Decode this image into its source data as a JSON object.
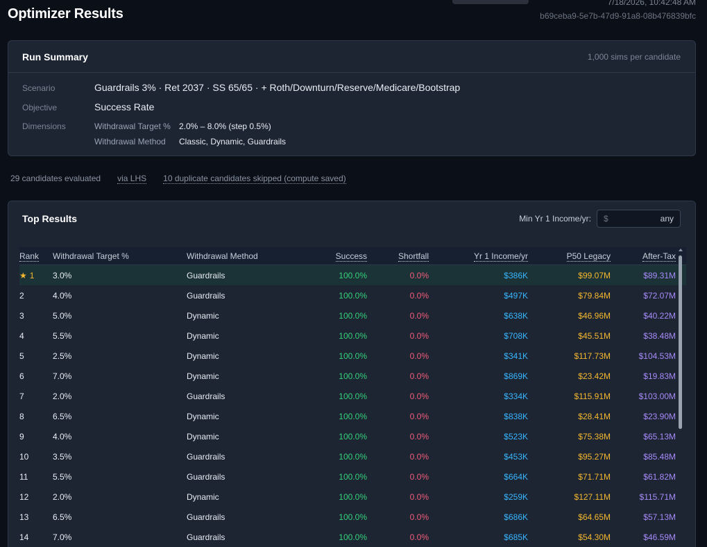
{
  "header": {
    "title": "Optimizer Results",
    "timestamp": "7/18/2026, 10:42:48 AM",
    "run_id": "b69ceba9-5e7b-47d9-91a8-08b476839bfc"
  },
  "summary": {
    "title": "Run Summary",
    "sims": "1,000 sims per candidate",
    "scenario_label": "Scenario",
    "scenario_value": "Guardrails 3% · Ret 2037 · SS 65/65 · + Roth/Downturn/Reserve/Medicare/Bootstrap",
    "objective_label": "Objective",
    "objective_value": "Success Rate",
    "dimensions_label": "Dimensions",
    "dimensions": [
      {
        "name": "Withdrawal Target %",
        "value": "2.0% – 8.0% (step 0.5%)"
      },
      {
        "name": "Withdrawal Method",
        "value": "Classic, Dynamic, Guardrails"
      }
    ]
  },
  "stats": {
    "evaluated": "29 candidates evaluated",
    "method": "via LHS",
    "skipped": "10 duplicate candidates skipped (compute saved)"
  },
  "results": {
    "title": "Top Results",
    "filter_label": "Min Yr 1 Income/yr:",
    "filter_prefix": "$",
    "filter_placeholder": "any",
    "columns": {
      "rank": "Rank",
      "target": "Withdrawal Target %",
      "method": "Withdrawal Method",
      "success": "Success",
      "shortfall": "Shortfall",
      "income": "Yr 1 Income/yr",
      "legacy": "P50 Legacy",
      "after_tax": "After-Tax"
    },
    "rows": [
      {
        "rank": "1",
        "target": "3.0%",
        "method": "Guardrails",
        "success": "100.0%",
        "shortfall": "0.0%",
        "income": "$386K",
        "legacy": "$99.07M",
        "after_tax": "$89.31M"
      },
      {
        "rank": "2",
        "target": "4.0%",
        "method": "Guardrails",
        "success": "100.0%",
        "shortfall": "0.0%",
        "income": "$497K",
        "legacy": "$79.84M",
        "after_tax": "$72.07M"
      },
      {
        "rank": "3",
        "target": "5.0%",
        "method": "Dynamic",
        "success": "100.0%",
        "shortfall": "0.0%",
        "income": "$638K",
        "legacy": "$46.96M",
        "after_tax": "$40.22M"
      },
      {
        "rank": "4",
        "target": "5.5%",
        "method": "Dynamic",
        "success": "100.0%",
        "shortfall": "0.0%",
        "income": "$708K",
        "legacy": "$45.51M",
        "after_tax": "$38.48M"
      },
      {
        "rank": "5",
        "target": "2.5%",
        "method": "Dynamic",
        "success": "100.0%",
        "shortfall": "0.0%",
        "income": "$341K",
        "legacy": "$117.73M",
        "after_tax": "$104.53M"
      },
      {
        "rank": "6",
        "target": "7.0%",
        "method": "Dynamic",
        "success": "100.0%",
        "shortfall": "0.0%",
        "income": "$869K",
        "legacy": "$23.42M",
        "after_tax": "$19.83M"
      },
      {
        "rank": "7",
        "target": "2.0%",
        "method": "Guardrails",
        "success": "100.0%",
        "shortfall": "0.0%",
        "income": "$334K",
        "legacy": "$115.91M",
        "after_tax": "$103.00M"
      },
      {
        "rank": "8",
        "target": "6.5%",
        "method": "Dynamic",
        "success": "100.0%",
        "shortfall": "0.0%",
        "income": "$838K",
        "legacy": "$28.41M",
        "after_tax": "$23.90M"
      },
      {
        "rank": "9",
        "target": "4.0%",
        "method": "Dynamic",
        "success": "100.0%",
        "shortfall": "0.0%",
        "income": "$523K",
        "legacy": "$75.38M",
        "after_tax": "$65.13M"
      },
      {
        "rank": "10",
        "target": "3.5%",
        "method": "Guardrails",
        "success": "100.0%",
        "shortfall": "0.0%",
        "income": "$453K",
        "legacy": "$95.27M",
        "after_tax": "$85.48M"
      },
      {
        "rank": "11",
        "target": "5.5%",
        "method": "Guardrails",
        "success": "100.0%",
        "shortfall": "0.0%",
        "income": "$664K",
        "legacy": "$71.71M",
        "after_tax": "$61.82M"
      },
      {
        "rank": "12",
        "target": "2.0%",
        "method": "Dynamic",
        "success": "100.0%",
        "shortfall": "0.0%",
        "income": "$259K",
        "legacy": "$127.11M",
        "after_tax": "$115.71M"
      },
      {
        "rank": "13",
        "target": "6.5%",
        "method": "Guardrails",
        "success": "100.0%",
        "shortfall": "0.0%",
        "income": "$686K",
        "legacy": "$64.65M",
        "after_tax": "$57.13M"
      },
      {
        "rank": "14",
        "target": "7.0%",
        "method": "Guardrails",
        "success": "100.0%",
        "shortfall": "0.0%",
        "income": "$685K",
        "legacy": "$54.30M",
        "after_tax": "$46.59M"
      }
    ]
  },
  "colors": {
    "background": "#0b0f17",
    "card": "#1d2533",
    "success": "#34d17a",
    "shortfall": "#f25c7a",
    "income": "#38b6ff",
    "legacy": "#f5b82e",
    "after_tax": "#a78bfa",
    "top_row": "#1b3236"
  },
  "icons": {
    "top_rank": "star-icon",
    "scroll": "scroll-up-arrow-icon"
  }
}
